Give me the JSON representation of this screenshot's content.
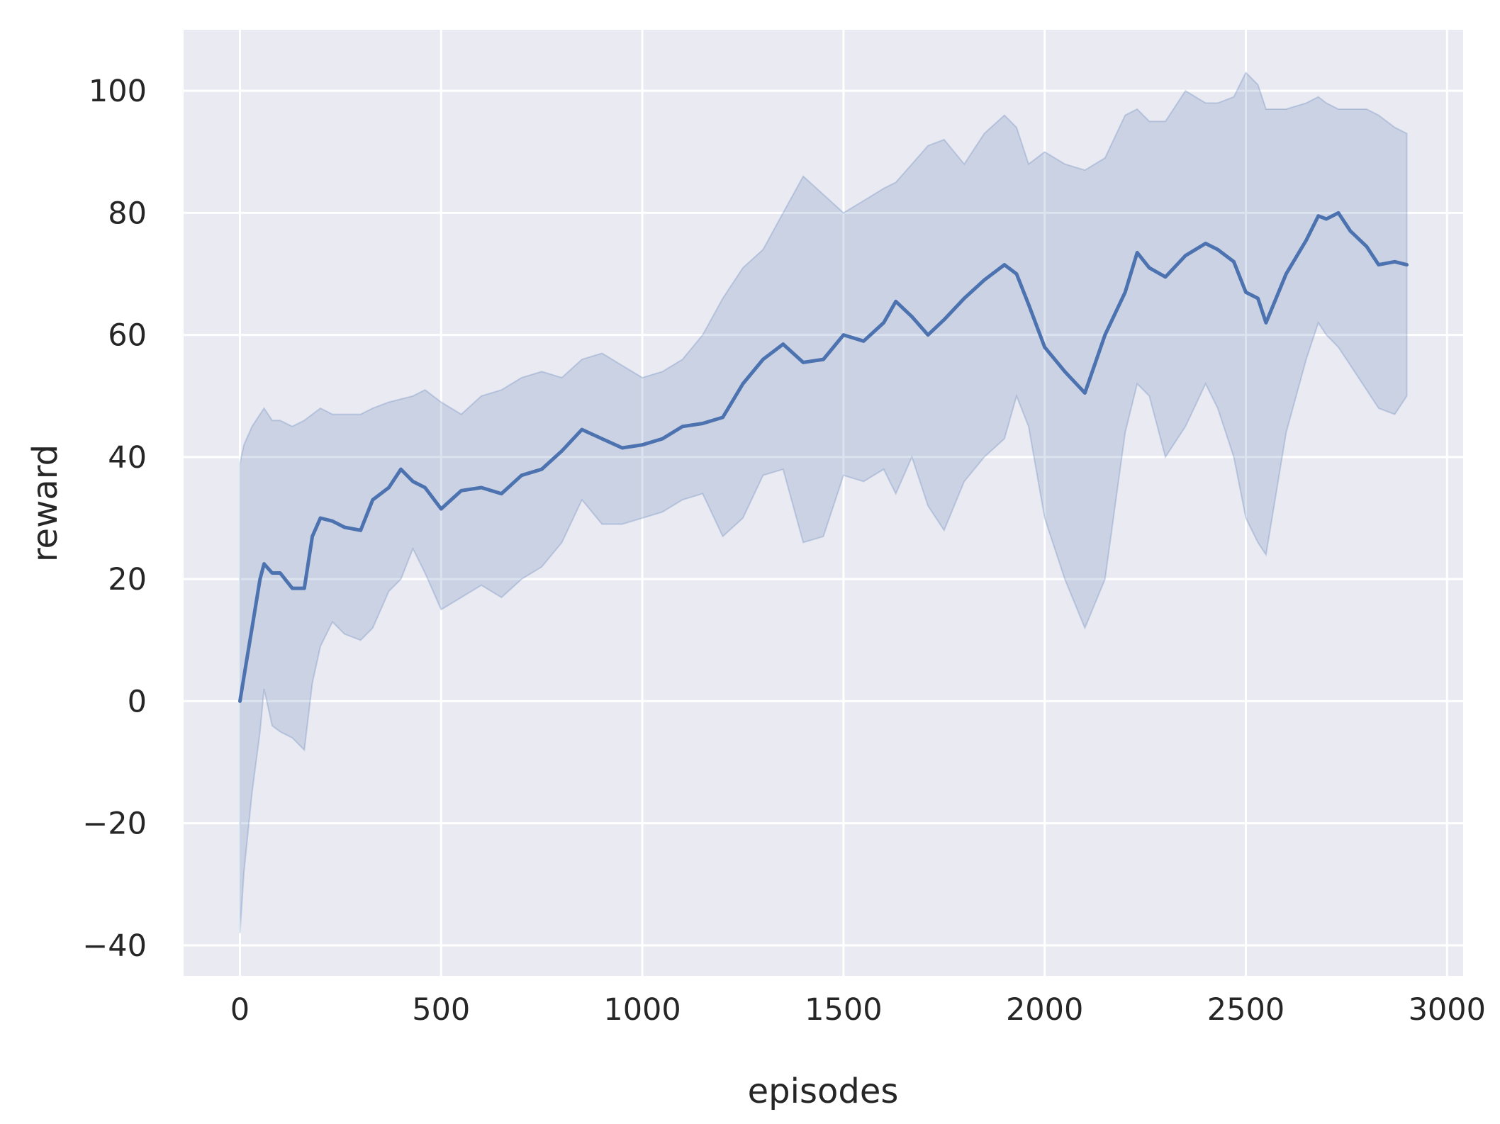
{
  "chart_data": {
    "type": "line",
    "title": "",
    "xlabel": "episodes",
    "ylabel": "reward",
    "xlim": [
      -140,
      3040
    ],
    "ylim": [
      -45,
      110
    ],
    "xticks": [
      0,
      500,
      1000,
      1500,
      2000,
      2500,
      3000
    ],
    "yticks": [
      -40,
      -20,
      0,
      20,
      40,
      60,
      80,
      100
    ],
    "xtick_labels": [
      "0",
      "500",
      "1000",
      "1500",
      "2000",
      "2500",
      "3000"
    ],
    "ytick_labels": [
      "−40",
      "−20",
      "0",
      "20",
      "40",
      "60",
      "80",
      "100"
    ],
    "grid": true,
    "legend": "none",
    "colors": {
      "background": "#eaeaf2",
      "grid": "#ffffff",
      "line": "#4c72b0",
      "band": "#4c72b0"
    },
    "series": [
      {
        "style": "mean line with shaded confidence band",
        "x": [
          0,
          10,
          30,
          50,
          60,
          80,
          100,
          130,
          160,
          180,
          200,
          230,
          260,
          300,
          330,
          370,
          400,
          430,
          460,
          500,
          550,
          600,
          650,
          700,
          750,
          800,
          850,
          900,
          950,
          1000,
          1050,
          1100,
          1150,
          1200,
          1250,
          1300,
          1350,
          1400,
          1450,
          1500,
          1550,
          1600,
          1630,
          1670,
          1710,
          1750,
          1800,
          1850,
          1900,
          1930,
          1960,
          2000,
          2050,
          2100,
          2150,
          2200,
          2230,
          2260,
          2300,
          2350,
          2400,
          2430,
          2470,
          2500,
          2530,
          2550,
          2600,
          2650,
          2680,
          2700,
          2730,
          2760,
          2800,
          2830,
          2870,
          2900
        ],
        "mean": [
          0,
          4,
          12,
          20,
          22.5,
          21,
          21,
          18.5,
          18.5,
          27,
          30,
          29.5,
          28.5,
          28,
          33,
          35,
          38,
          36,
          35,
          31.5,
          34.5,
          35,
          34,
          37,
          38,
          41,
          44.5,
          43,
          41.5,
          42,
          43,
          45,
          45.5,
          46.5,
          52,
          56,
          58.5,
          55.5,
          56,
          60,
          59,
          62,
          65.5,
          63,
          60,
          62.5,
          66,
          69,
          71.5,
          70,
          65,
          58,
          54,
          50.5,
          60,
          67,
          73.5,
          71,
          69.5,
          73,
          75,
          74,
          72,
          67,
          66,
          62,
          70,
          75.5,
          79.5,
          79,
          80,
          77,
          74.5,
          71.5,
          72,
          71.5
        ],
        "upper": [
          39,
          42,
          45,
          47,
          48,
          46,
          46,
          45,
          46,
          47,
          48,
          47,
          47,
          47,
          48,
          49,
          49.5,
          50,
          51,
          49,
          47,
          50,
          51,
          53,
          54,
          53,
          56,
          57,
          55,
          53,
          54,
          56,
          60,
          66,
          71,
          74,
          80,
          86,
          83,
          80,
          82,
          84,
          85,
          88,
          91,
          92,
          88,
          93,
          96,
          94,
          88,
          90,
          88,
          87,
          89,
          96,
          97,
          95,
          95,
          100,
          98,
          98,
          99,
          103,
          101,
          97,
          97,
          98,
          99,
          98,
          97,
          97,
          97,
          96,
          94,
          93
        ],
        "lower": [
          -38,
          -28,
          -15,
          -5,
          2,
          -4,
          -5,
          -6,
          -8,
          3,
          9,
          13,
          11,
          10,
          12,
          18,
          20,
          25,
          21,
          15,
          17,
          19,
          17,
          20,
          22,
          26,
          33,
          29,
          29,
          30,
          31,
          33,
          34,
          27,
          30,
          37,
          38,
          26,
          27,
          37,
          36,
          38,
          34,
          40,
          32,
          28,
          36,
          40,
          43,
          50,
          45,
          30,
          20,
          12,
          20,
          44,
          52,
          50,
          40,
          45,
          52,
          48,
          40,
          30,
          26,
          24,
          44,
          56,
          62,
          60,
          58,
          55,
          51,
          48,
          47,
          50
        ]
      }
    ]
  }
}
